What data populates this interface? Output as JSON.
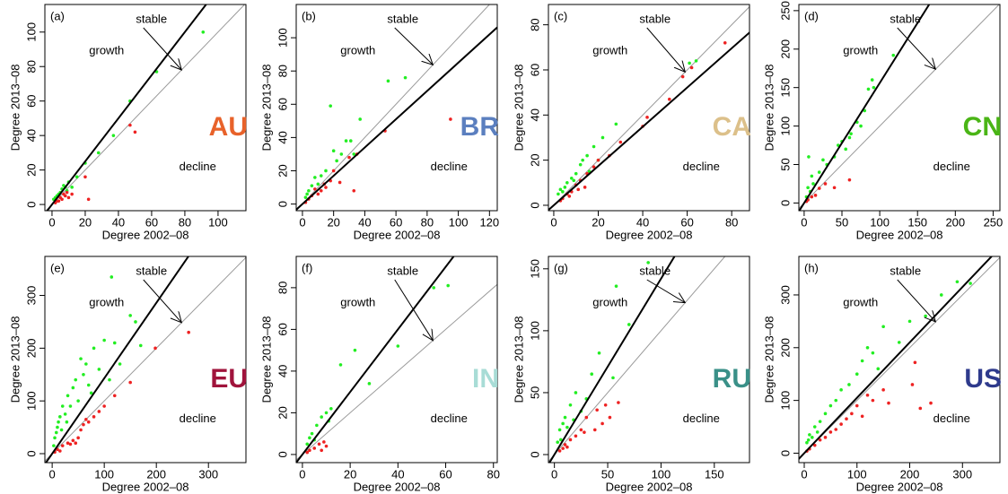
{
  "chart_data": [
    {
      "type": "scatter",
      "panel": "(a)",
      "region": "AU",
      "region_color": "#e8622a",
      "xlabel": "Degree 2002–08",
      "ylabel": "Degree 2013–08",
      "growth_label": "growth",
      "stable_label": "stable",
      "decline_label": "decline",
      "xlim": [
        -4.3,
        116.8
      ],
      "ylim": [
        -3.6,
        116
      ],
      "xticks": [
        0,
        20,
        40,
        60,
        80,
        100
      ],
      "yticks": [
        0,
        20,
        40,
        60,
        80,
        100
      ],
      "fit_slope": 1.25,
      "series": [
        {
          "color": "#22ee22",
          "x": [
            91,
            63,
            47,
            37,
            28,
            20,
            15,
            10,
            8,
            6,
            5,
            3,
            2,
            9,
            12,
            4,
            1,
            7
          ],
          "y": [
            100,
            77,
            60,
            40,
            30,
            24,
            16,
            13,
            10,
            9,
            7,
            5,
            4,
            8,
            10,
            6,
            3,
            11
          ]
        },
        {
          "color": "#ee2222",
          "x": [
            50,
            47,
            20,
            22,
            10,
            8,
            6,
            4,
            12,
            5,
            3,
            9,
            2,
            7
          ],
          "y": [
            42,
            46,
            16,
            3,
            4,
            5,
            3,
            2,
            6,
            4,
            2,
            7,
            1,
            6
          ]
        }
      ]
    },
    {
      "type": "scatter",
      "panel": "(b)",
      "region": "BR",
      "region_color": "#5b7fbf",
      "xlabel": "Degree 2002–08",
      "ylabel": "Degree 2013–08",
      "growth_label": "growth",
      "stable_label": "stable",
      "decline_label": "decline",
      "xlim": [
        -4,
        125
      ],
      "ylim": [
        -4,
        120
      ],
      "xticks": [
        0,
        20,
        40,
        60,
        80,
        100,
        120
      ],
      "yticks": [
        0,
        20,
        40,
        60,
        80,
        100
      ],
      "fit_slope": 0.85,
      "series": [
        {
          "color": "#22ee22",
          "x": [
            55,
            66,
            18,
            37,
            28,
            31,
            25,
            20,
            15,
            12,
            8,
            6,
            10,
            4,
            3,
            2,
            22,
            33
          ],
          "y": [
            74,
            76,
            59,
            51,
            38,
            38,
            30,
            32,
            20,
            17,
            16,
            11,
            12,
            8,
            6,
            4,
            26,
            30
          ]
        },
        {
          "color": "#ee2222",
          "x": [
            95,
            53,
            35,
            33,
            30,
            20,
            15,
            12,
            10,
            8,
            6,
            4,
            18,
            24,
            2,
            14
          ],
          "y": [
            51,
            44,
            30,
            8,
            28,
            20,
            10,
            8,
            6,
            9,
            5,
            3,
            14,
            13,
            1,
            12
          ]
        }
      ]
    },
    {
      "type": "scatter",
      "panel": "(c)",
      "region": "CA",
      "region_color": "#dcc08a",
      "xlabel": "Degree 2002–08",
      "ylabel": "Degree 2013–08",
      "growth_label": "growth",
      "stable_label": "stable",
      "decline_label": "decline",
      "xlim": [
        -2.4,
        88
      ],
      "ylim": [
        -2.4,
        89
      ],
      "xticks": [
        0,
        20,
        40,
        60,
        80
      ],
      "yticks": [
        0,
        20,
        40,
        60,
        80
      ],
      "fit_slope": 0.87,
      "series": [
        {
          "color": "#22ee22",
          "x": [
            64,
            61,
            28,
            22,
            18,
            15,
            12,
            10,
            8,
            6,
            5,
            3,
            2,
            4,
            9,
            13,
            16,
            20
          ],
          "y": [
            64,
            63,
            36,
            30,
            26,
            22,
            18,
            14,
            12,
            10,
            8,
            7,
            5,
            6,
            11,
            20,
            15,
            20
          ]
        },
        {
          "color": "#ee2222",
          "x": [
            77,
            62,
            58,
            52,
            42,
            40,
            30,
            25,
            20,
            15,
            12,
            10,
            8,
            6,
            4,
            3,
            14,
            18,
            7,
            11
          ],
          "y": [
            72,
            61,
            57,
            47,
            39,
            35,
            28,
            22,
            20,
            14,
            11,
            9,
            6,
            5,
            3,
            2,
            8,
            17,
            4,
            7
          ]
        }
      ]
    },
    {
      "type": "scatter",
      "panel": "(d)",
      "region": "CN",
      "region_color": "#4ab516",
      "xlabel": "Degree 2002–08",
      "ylabel": "Degree 2013–08",
      "growth_label": "growth",
      "stable_label": "stable",
      "decline_label": "decline",
      "xlim": [
        -7,
        259
      ],
      "ylim": [
        -10,
        258
      ],
      "xticks": [
        0,
        50,
        100,
        150,
        200,
        250
      ],
      "yticks": [
        0,
        50,
        100,
        150,
        200,
        250
      ],
      "fit_slope": 1.56,
      "series": [
        {
          "color": "#22ee22",
          "x": [
            118,
            90,
            85,
            92,
            80,
            70,
            60,
            50,
            55,
            40,
            30,
            20,
            10,
            12,
            5,
            8,
            3,
            62,
            75,
            45,
            25,
            6
          ],
          "y": [
            192,
            160,
            148,
            150,
            120,
            105,
            85,
            80,
            70,
            60,
            50,
            40,
            35,
            25,
            20,
            15,
            8,
            90,
            100,
            75,
            56,
            60
          ]
        },
        {
          "color": "#ee2222",
          "x": [
            40,
            60,
            28,
            20,
            10,
            5,
            15,
            3
          ],
          "y": [
            20,
            30,
            25,
            19,
            8,
            4,
            10,
            2
          ]
        }
      ]
    },
    {
      "type": "scatter",
      "panel": "(e)",
      "region": "EU",
      "region_color": "#a0143c",
      "xlabel": "Degree 2002–08",
      "ylabel": "Degree 2013–08",
      "growth_label": "growth",
      "stable_label": "stable",
      "decline_label": "decline",
      "xlim": [
        -14,
        372
      ],
      "ylim": [
        -17,
        374
      ],
      "xticks": [
        0,
        100,
        200,
        300
      ],
      "yticks": [
        0,
        100,
        200,
        300
      ],
      "fit_slope": 1.43,
      "series": [
        {
          "color": "#22ee22",
          "x": [
            114,
            150,
            160,
            100,
            80,
            120,
            170,
            55,
            60,
            40,
            70,
            90,
            30,
            20,
            50,
            15,
            10,
            25,
            35,
            5,
            8,
            12,
            45,
            65,
            110,
            130,
            3,
            18,
            28,
            75
          ],
          "y": [
            335,
            262,
            250,
            215,
            200,
            210,
            205,
            180,
            150,
            125,
            130,
            160,
            110,
            90,
            100,
            70,
            50,
            75,
            90,
            30,
            40,
            60,
            140,
            170,
            140,
            170,
            15,
            45,
            60,
            115
          ]
        },
        {
          "color": "#ee2222",
          "x": [
            262,
            198,
            150,
            120,
            100,
            80,
            60,
            50,
            40,
            30,
            20,
            10,
            70,
            90,
            55,
            35,
            15,
            5,
            45,
            65
          ],
          "y": [
            230,
            200,
            135,
            110,
            90,
            70,
            55,
            30,
            25,
            20,
            15,
            8,
            60,
            80,
            45,
            18,
            5,
            3,
            20,
            65
          ]
        }
      ]
    },
    {
      "type": "scatter",
      "panel": "(f)",
      "region": "IN",
      "region_color": "#a8dcd6",
      "xlabel": "Degree 2002–08",
      "ylabel": "Degree 2013–08",
      "growth_label": "growth",
      "stable_label": "stable",
      "decline_label": "decline",
      "xlim": [
        -2.6,
        81.6
      ],
      "ylim": [
        -3.9,
        95
      ],
      "xticks": [
        0,
        20,
        40,
        60,
        80
      ],
      "yticks": [
        0,
        20,
        40,
        60,
        80
      ],
      "fit_slope": 1.5,
      "series": [
        {
          "color": "#22ee22",
          "x": [
            55,
            61,
            40,
            22,
            16,
            28,
            12,
            10,
            8,
            6,
            4,
            3,
            2,
            11,
            5
          ],
          "y": [
            80,
            81,
            52,
            50,
            43,
            34,
            22,
            20,
            18,
            14,
            10,
            8,
            5,
            16,
            7
          ]
        },
        {
          "color": "#ee2222",
          "x": [
            9,
            7,
            5,
            10,
            3,
            2,
            8
          ],
          "y": [
            6,
            5,
            3,
            4,
            2,
            1,
            2
          ]
        }
      ]
    },
    {
      "type": "scatter",
      "panel": "(g)",
      "region": "RU",
      "region_color": "#3a9088",
      "xlabel": "Degree 2002–08",
      "ylabel": "Degree 2013–08",
      "growth_label": "growth",
      "stable_label": "stable",
      "decline_label": "decline",
      "xlim": [
        -5.6,
        183
      ],
      "ylim": [
        -6.5,
        160
      ],
      "xticks": [
        0,
        50,
        100,
        150
      ],
      "yticks": [
        0,
        50,
        100,
        150
      ],
      "fit_slope": 1.42,
      "series": [
        {
          "color": "#22ee22",
          "x": [
            58,
            88,
            70,
            42,
            35,
            55,
            20,
            15,
            10,
            8,
            5,
            12,
            30,
            3,
            25,
            18,
            6
          ],
          "y": [
            136,
            155,
            105,
            82,
            65,
            62,
            50,
            40,
            30,
            25,
            20,
            22,
            45,
            10,
            35,
            28,
            12
          ]
        },
        {
          "color": "#ee2222",
          "x": [
            60,
            48,
            40,
            30,
            25,
            20,
            15,
            10,
            8,
            5,
            38,
            45,
            52,
            28,
            12
          ],
          "y": [
            42,
            40,
            36,
            30,
            20,
            15,
            12,
            8,
            5,
            3,
            20,
            25,
            30,
            18,
            6
          ]
        }
      ]
    },
    {
      "type": "scatter",
      "panel": "(h)",
      "region": "US",
      "region_color": "#2e3a8c",
      "xlabel": "Degree 2002–08",
      "ylabel": "Degree 2013–08",
      "growth_label": "growth",
      "stable_label": "stable",
      "decline_label": "decline",
      "xlim": [
        -10.2,
        371
      ],
      "ylim": [
        -17.9,
        373
      ],
      "xticks": [
        0,
        100,
        200,
        300
      ],
      "yticks": [
        0,
        100,
        200,
        300
      ],
      "fit_slope": 1.05,
      "series": [
        {
          "color": "#22ee22",
          "x": [
            290,
            315,
            260,
            230,
            150,
            180,
            130,
            110,
            100,
            85,
            70,
            60,
            50,
            40,
            30,
            20,
            10,
            15,
            5,
            8,
            25,
            200,
            140,
            120
          ],
          "y": [
            325,
            322,
            300,
            260,
            240,
            210,
            190,
            175,
            150,
            130,
            120,
            100,
            90,
            75,
            60,
            50,
            35,
            30,
            20,
            25,
            40,
            250,
            160,
            200
          ]
        },
        {
          "color": "#ee2222",
          "x": [
            210,
            240,
            220,
            205,
            160,
            150,
            120,
            100,
            90,
            80,
            70,
            60,
            50,
            40,
            30,
            20,
            10,
            5,
            110,
            130
          ],
          "y": [
            172,
            95,
            85,
            130,
            95,
            120,
            110,
            90,
            75,
            65,
            55,
            45,
            40,
            30,
            25,
            15,
            8,
            4,
            70,
            100
          ]
        }
      ]
    }
  ]
}
